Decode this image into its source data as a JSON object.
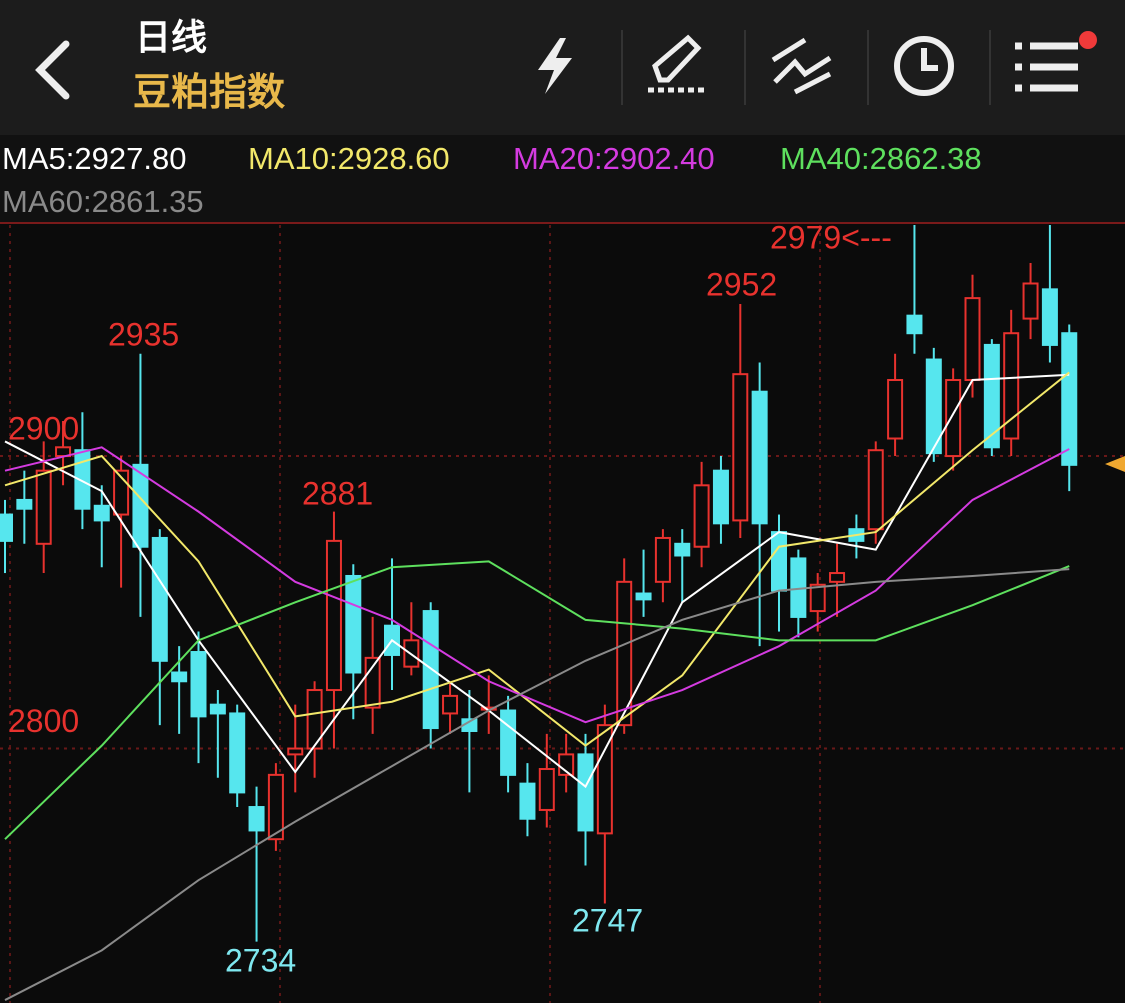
{
  "header": {
    "title": "日线",
    "subtitle": "豆粕指数"
  },
  "chart_data": {
    "type": "candlestick",
    "ylim": [
      2713,
      2979
    ],
    "yticks": [
      2800,
      2900
    ],
    "up_color": "#e8322e",
    "down_color": "#56e6ee",
    "open": [
      2880,
      2885,
      2870,
      2900,
      2902,
      2883,
      2880,
      2897,
      2872,
      2826,
      2833,
      2815,
      2812,
      2780,
      2769,
      2798,
      2800,
      2820,
      2859,
      2814,
      2842,
      2828,
      2847,
      2812,
      2810,
      2814,
      2813,
      2788,
      2779,
      2791,
      2798,
      2771,
      2808,
      2853,
      2857,
      2870,
      2869,
      2895,
      2878,
      2922,
      2874,
      2865,
      2847,
      2857,
      2875,
      2875,
      2906,
      2948,
      2933,
      2900,
      2926,
      2938,
      2906,
      2947,
      2957,
      2942
    ],
    "high": [
      2885,
      2895,
      2905,
      2912,
      2915,
      2890,
      2900,
      2935,
      2875,
      2835,
      2840,
      2820,
      2815,
      2787,
      2795,
      2815,
      2823,
      2881,
      2863,
      2845,
      2865,
      2850,
      2850,
      2823,
      2820,
      2825,
      2818,
      2795,
      2805,
      2805,
      2805,
      2815,
      2865,
      2868,
      2875,
      2875,
      2898,
      2900,
      2952,
      2932,
      2880,
      2868,
      2860,
      2870,
      2880,
      2905,
      2935,
      2979,
      2937,
      2930,
      2962,
      2940,
      2950,
      2966,
      2979,
      2945
    ],
    "low": [
      2860,
      2870,
      2860,
      2890,
      2875,
      2862,
      2855,
      2845,
      2808,
      2805,
      2795,
      2790,
      2780,
      2734,
      2765,
      2785,
      2790,
      2800,
      2810,
      2805,
      2820,
      2825,
      2800,
      2805,
      2785,
      2805,
      2785,
      2770,
      2773,
      2785,
      2760,
      2747,
      2805,
      2845,
      2850,
      2850,
      2862,
      2870,
      2872,
      2835,
      2840,
      2838,
      2840,
      2845,
      2865,
      2870,
      2900,
      2935,
      2898,
      2895,
      2920,
      2900,
      2900,
      2940,
      2932,
      2888
    ],
    "close": [
      2871,
      2882,
      2895,
      2903,
      2882,
      2878,
      2895,
      2869,
      2830,
      2823,
      2811,
      2812,
      2785,
      2772,
      2791,
      2800,
      2820,
      2871,
      2826,
      2831,
      2832,
      2837,
      2807,
      2818,
      2806,
      2814,
      2791,
      2776,
      2793,
      2798,
      2772,
      2808,
      2857,
      2851,
      2872,
      2866,
      2890,
      2877,
      2928,
      2877,
      2854,
      2845,
      2856,
      2860,
      2871,
      2902,
      2926,
      2942,
      2901,
      2926,
      2954,
      2903,
      2942,
      2959,
      2938,
      2897
    ],
    "ma_x": [
      0,
      5,
      10,
      15,
      20,
      25,
      30,
      35,
      40,
      45,
      50,
      55
    ],
    "series": [
      {
        "name": "MA5",
        "color": "#ffffff",
        "values": [
          2905,
          2888,
          2837,
          2792,
          2837,
          2813,
          2787,
          2850,
          2874,
          2868,
          2926,
          2927.8
        ],
        "value_label": "2927.80"
      },
      {
        "name": "MA10",
        "color": "#f2e86a",
        "values": [
          2890,
          2900,
          2864,
          2811,
          2816,
          2827,
          2801,
          2825,
          2869,
          2874,
          2902,
          2928.6
        ],
        "value_label": "2928.60"
      },
      {
        "name": "MA20",
        "color": "#d43be0",
        "values": [
          2895,
          2903,
          2881,
          2857,
          2844,
          2823,
          2809,
          2820,
          2835,
          2854,
          2885,
          2902.4
        ],
        "value_label": "2902.40"
      },
      {
        "name": "MA40",
        "color": "#5ee05e",
        "values": [
          2769,
          2801,
          2837,
          2850,
          2862,
          2864,
          2844,
          2841,
          2837,
          2837,
          2849,
          2862.38
        ],
        "value_label": "2862.38"
      },
      {
        "name": "MA60",
        "color": "#8a8a8a",
        "values": [
          2714,
          2731,
          2755,
          2775,
          2794,
          2813,
          2830,
          2844,
          2854,
          2857,
          2859,
          2861.35
        ],
        "value_label": "2861.35"
      }
    ],
    "annotations": [
      {
        "text": "2979<---"
      },
      {
        "text": "2952"
      },
      {
        "text": "2935"
      },
      {
        "text": "2881"
      },
      {
        "text": "2734"
      },
      {
        "text": "2747"
      }
    ]
  }
}
